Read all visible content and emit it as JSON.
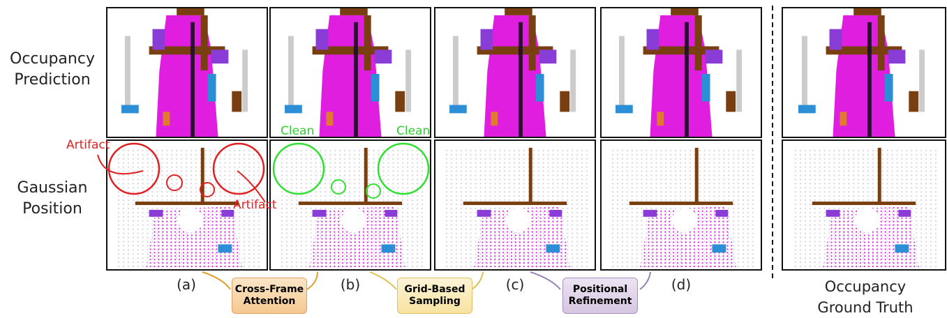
{
  "row_labels": [
    "Occupancy Prediction",
    "Gaussian Position"
  ],
  "column_labels": [
    "(a)",
    "(b)",
    "(c)",
    "(d)"
  ],
  "ground_truth_label": "Occupancy Ground Truth",
  "steps": [
    "Cross-Frame Attention",
    "Grid-Based Sampling",
    "Positional Refinement"
  ],
  "annotations": {
    "artifact": [
      "Artifact",
      "Artifact"
    ],
    "clean": [
      "Clean",
      "Clean"
    ]
  }
}
